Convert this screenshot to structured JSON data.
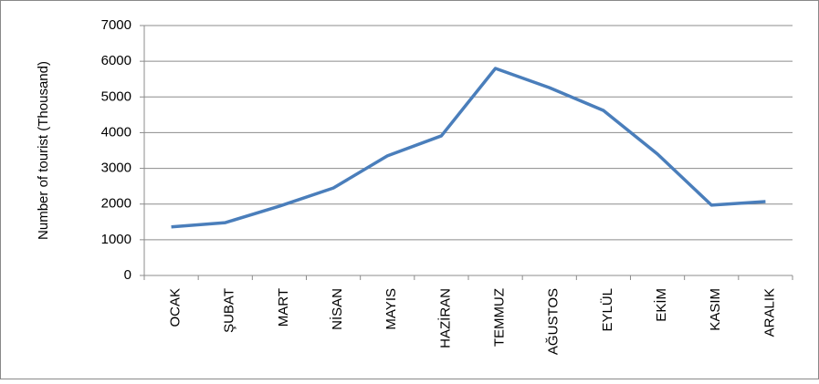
{
  "chart_data": {
    "type": "line",
    "y_label": "Number of tourist (Thousand)",
    "categories": [
      "OCAK",
      "ŞUBAT",
      "MART",
      "NİSAN",
      "MAYIS",
      "HAZİRAN",
      "TEMMUZ",
      "AĞUSTOS",
      "EYLÜL",
      "EKİM",
      "KASIM",
      "ARALIK"
    ],
    "series": [
      {
        "name": "Number of tourist",
        "color": "#4a7ebb",
        "values": [
          1360,
          1480,
          1940,
          2450,
          3350,
          3910,
          5800,
          5260,
          4620,
          3400,
          1970,
          2070
        ]
      }
    ],
    "ylim": [
      0,
      7000
    ],
    "yticks": [
      0,
      1000,
      2000,
      3000,
      4000,
      5000,
      6000,
      7000
    ],
    "grid": true
  }
}
